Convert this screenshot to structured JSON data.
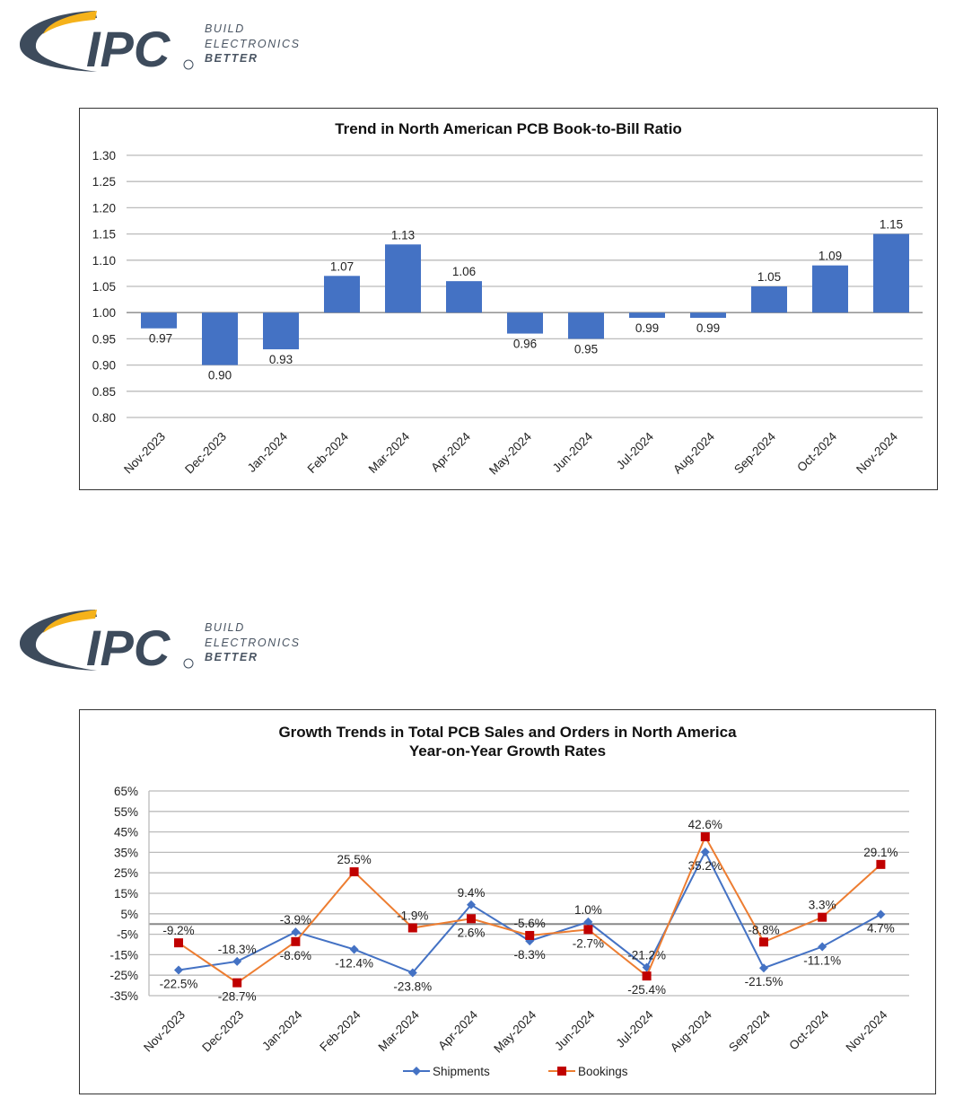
{
  "logo": {
    "text": "IPC",
    "tagline": [
      "BUILD",
      "ELECTRONICS",
      "BETTER"
    ],
    "colors": {
      "primary": "#3d4b5c",
      "accent": "#f5b21a"
    }
  },
  "chart_data": [
    {
      "type": "bar",
      "title": "Trend in North American PCB Book-to-Bill Ratio",
      "categories": [
        "Nov-2023",
        "Dec-2023",
        "Jan-2024",
        "Feb-2024",
        "Mar-2024",
        "Apr-2024",
        "May-2024",
        "Jun-2024",
        "Jul-2024",
        "Aug-2024",
        "Sep-2024",
        "Oct-2024",
        "Nov-2024"
      ],
      "values": [
        0.97,
        0.9,
        0.93,
        1.07,
        1.13,
        1.06,
        0.96,
        0.95,
        0.99,
        0.99,
        1.05,
        1.09,
        1.15
      ],
      "baseline": 1.0,
      "ylim": [
        0.8,
        1.3
      ],
      "yticks": [
        "0.80",
        "0.85",
        "0.90",
        "0.95",
        "1.00",
        "1.05",
        "1.10",
        "1.15",
        "1.20",
        "1.25",
        "1.30"
      ],
      "grid": true,
      "color": "#4472c4"
    },
    {
      "type": "line",
      "title": "Growth Trends in Total PCB Sales and Orders in North America",
      "subtitle": "Year-on-Year Growth Rates",
      "categories": [
        "Nov-2023",
        "Dec-2023",
        "Jan-2024",
        "Feb-2024",
        "Mar-2024",
        "Apr-2024",
        "May-2024",
        "Jun-2024",
        "Jul-2024",
        "Aug-2024",
        "Sep-2024",
        "Oct-2024",
        "Nov-2024"
      ],
      "series": [
        {
          "name": "Shipments",
          "color": "#4472c4",
          "marker": "diamond",
          "values": [
            -22.5,
            -18.3,
            -3.9,
            -12.4,
            -23.8,
            9.4,
            -8.3,
            1.0,
            -21.2,
            35.2,
            -21.5,
            -11.1,
            4.7
          ]
        },
        {
          "name": "Bookings",
          "color": "#ed7d31",
          "marker_color": "#c00000",
          "marker": "square",
          "values": [
            -9.2,
            -28.7,
            -8.6,
            25.5,
            -1.9,
            2.6,
            -5.6,
            -2.7,
            -25.4,
            42.6,
            -8.8,
            3.3,
            29.1
          ]
        }
      ],
      "ylim": [
        -35,
        65
      ],
      "yticks": [
        "-35%",
        "-25%",
        "-15%",
        "-5%",
        "5%",
        "15%",
        "25%",
        "35%",
        "45%",
        "55%",
        "65%"
      ],
      "grid": true,
      "legend": "bottom"
    }
  ]
}
